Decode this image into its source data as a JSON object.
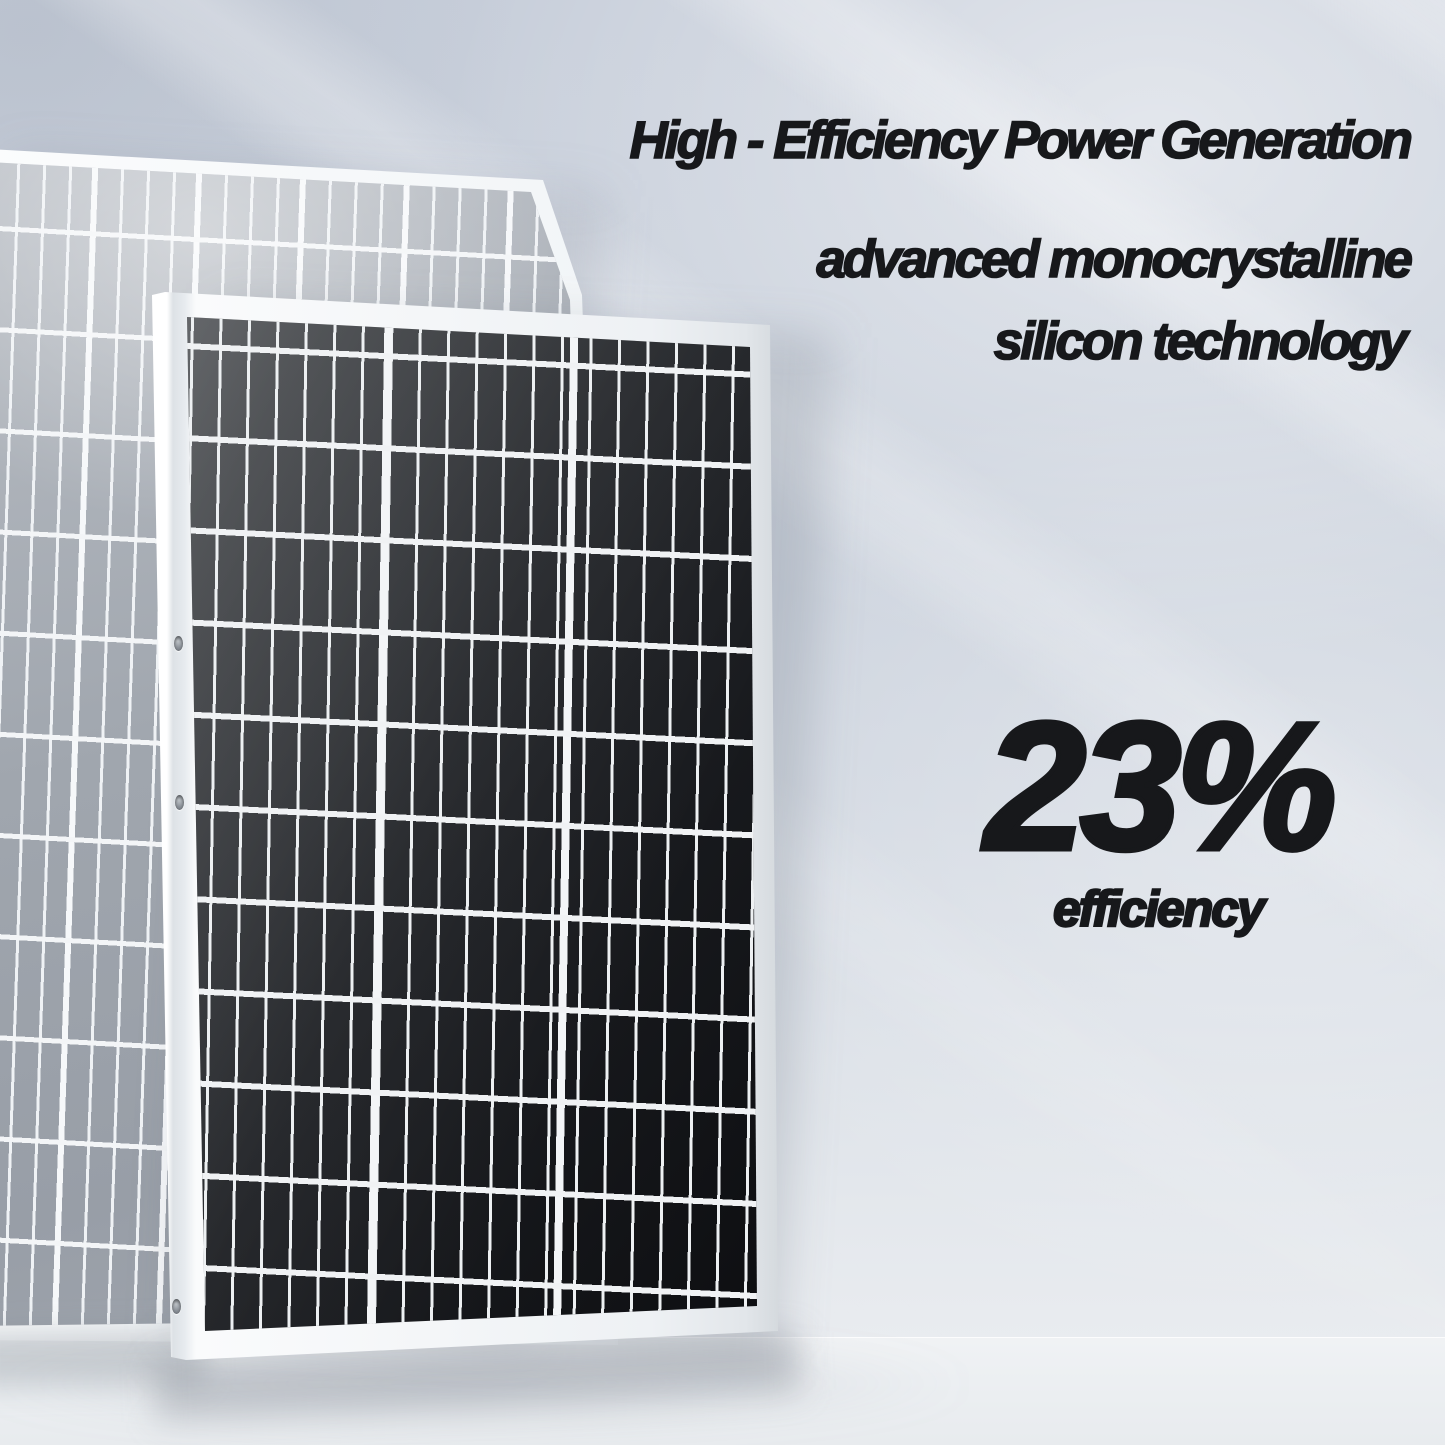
{
  "headline": {
    "line1": "High - Efficiency Power Generation",
    "line2": "advanced monocrystalline",
    "line3": "silicon technology"
  },
  "stat": {
    "value": "23%",
    "label": "efficiency"
  },
  "panels": {
    "foreground": "monocrystalline-solar-panel",
    "background": "polycrystalline-solar-panel"
  },
  "colors": {
    "text": "#17181b",
    "wall": "#cad1dc",
    "floor": "#edeff2",
    "panel_frame": "#f4f6f8",
    "mono_cell_dark": "#0e0f12",
    "mono_cell_sheen": "#4e5157",
    "poly_cell": "#a0a6ae",
    "grid_line": "#ffffff"
  }
}
